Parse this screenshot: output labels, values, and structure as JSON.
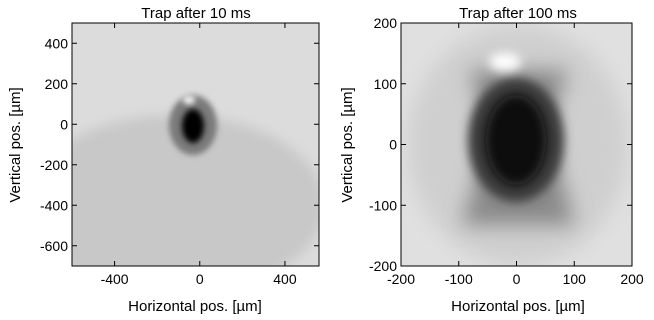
{
  "chart_data": [
    {
      "type": "heatmap",
      "title": "Trap after 10 ms",
      "xlabel": "Horizontal pos. [µm]",
      "ylabel": "Vertical pos. [µm]",
      "xlim": [
        -600,
        560
      ],
      "ylim": [
        -700,
        500
      ],
      "xticks": [
        -400,
        0,
        400
      ],
      "yticks": [
        400,
        200,
        0,
        -200,
        -400,
        -600
      ],
      "colormap": "grayscale (dark = high density)",
      "background_levels": [
        "#dcdcdc",
        "#c8c8c8"
      ],
      "features": [
        {
          "kind": "dense-cloud",
          "center": [
            0,
            0
          ],
          "extent": [
            [
              -50,
              60
            ],
            [
              -80,
              80
            ]
          ],
          "shade": "#050505"
        },
        {
          "kind": "halo",
          "center": [
            0,
            10
          ],
          "extent": [
            [
              -120,
              120
            ],
            [
              -150,
              150
            ]
          ],
          "shade": "#7a7a7a"
        },
        {
          "kind": "bright-spot",
          "center": [
            -10,
            100
          ],
          "shade": "#ffffff"
        }
      ]
    },
    {
      "type": "heatmap",
      "title": "Trap after 100 ms",
      "xlabel": "Horizontal pos. [µm]",
      "ylabel": "Vertical pos. [µm]",
      "xlim": [
        -200,
        200
      ],
      "ylim": [
        -200,
        200
      ],
      "xticks": [
        -200,
        -100,
        0,
        100,
        200
      ],
      "yticks": [
        200,
        100,
        0,
        -100,
        -200
      ],
      "colormap": "grayscale (dark = high density)",
      "background_levels": [
        "#e0e0e0",
        "#cfcfcf"
      ],
      "features": [
        {
          "kind": "dense-cloud",
          "center": [
            0,
            10
          ],
          "extent": [
            [
              -60,
              60
            ],
            [
              -90,
              110
            ]
          ],
          "shade": "#0a0a0a"
        },
        {
          "kind": "x-shaped-halo",
          "center": [
            0,
            0
          ],
          "extent": [
            [
              -150,
              150
            ],
            [
              -180,
              180
            ]
          ],
          "shade": "#8a8a8a"
        },
        {
          "kind": "bright-spot",
          "center": [
            -25,
            160
          ],
          "shade": "#ffffff"
        }
      ]
    }
  ]
}
